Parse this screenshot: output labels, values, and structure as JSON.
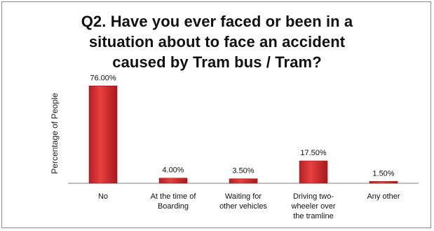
{
  "chart_data": {
    "type": "bar",
    "title_lines": [
      "Q2. Have you ever faced or  been in a",
      "situation about to face an accident",
      "caused by Tram bus / Tram?"
    ],
    "ylabel": "Percentage of People",
    "xlabel": "",
    "categories": [
      [
        "No"
      ],
      [
        "At the time of",
        "Boarding"
      ],
      [
        "Waiting for",
        "other vehicles"
      ],
      [
        "Driving two-",
        "wheeler over",
        "the tramline"
      ],
      [
        "Any other"
      ]
    ],
    "values": [
      76.0,
      4.0,
      3.5,
      17.5,
      1.5
    ],
    "value_labels": [
      "76.00%",
      "4.00%",
      "3.50%",
      "17.50%",
      "1.50%"
    ],
    "ylim": [
      0,
      80
    ],
    "grid": false,
    "legend": "none",
    "bar_color": "#d9262c"
  }
}
